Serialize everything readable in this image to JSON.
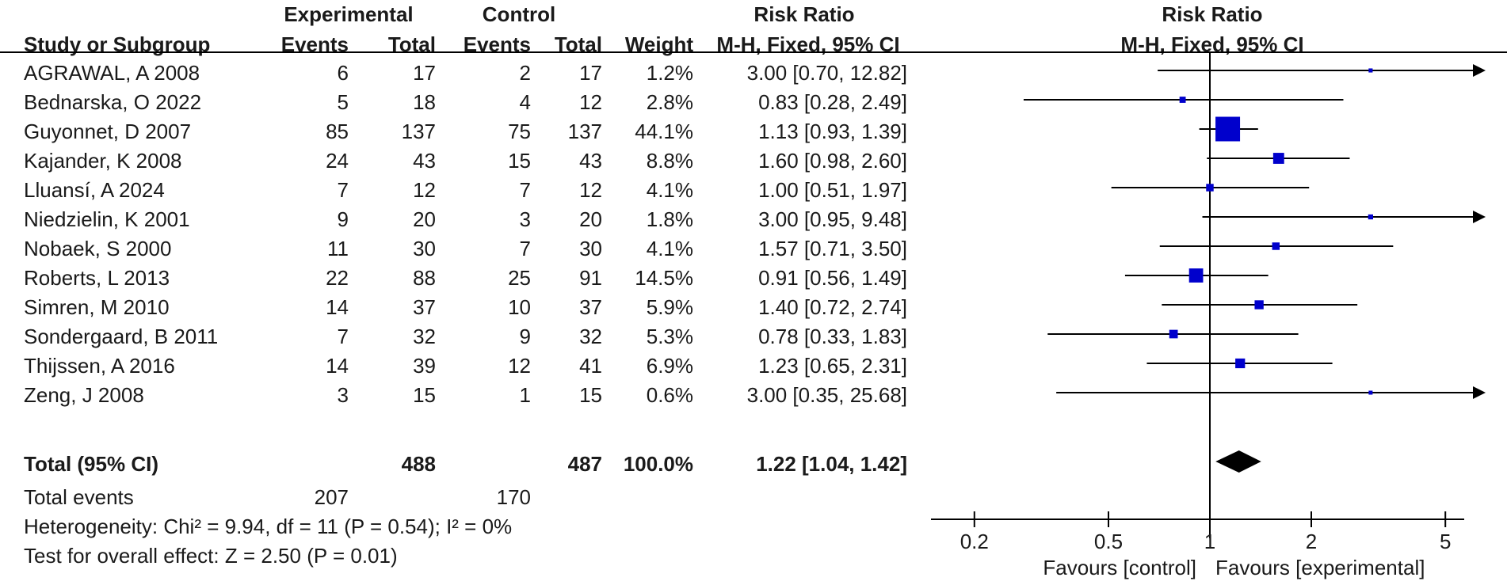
{
  "chart_data": {
    "type": "forest",
    "header": {
      "group_experimental": "Experimental",
      "group_control": "Control",
      "study_col": "Study or Subgroup",
      "events": "Events",
      "total": "Total",
      "weight": "Weight",
      "rr_title": "Risk Ratio",
      "rr_method": "M-H, Fixed, 95% CI",
      "plot_title": "Risk Ratio",
      "plot_method": "M-H, Fixed, 95% CI"
    },
    "studies": [
      {
        "name": "AGRAWAL, A 2008",
        "e_events": "6",
        "e_total": "17",
        "c_events": "2",
        "c_total": "17",
        "weight": "1.2%",
        "ci_text": "3.00 [0.70, 12.82]",
        "rr": 3.0,
        "lo": 0.7,
        "hi": 12.82,
        "w": 1.2
      },
      {
        "name": "Bednarska, O 2022",
        "e_events": "5",
        "e_total": "18",
        "c_events": "4",
        "c_total": "12",
        "weight": "2.8%",
        "ci_text": "0.83 [0.28, 2.49]",
        "rr": 0.83,
        "lo": 0.28,
        "hi": 2.49,
        "w": 2.8
      },
      {
        "name": "Guyonnet, D 2007",
        "e_events": "85",
        "e_total": "137",
        "c_events": "75",
        "c_total": "137",
        "weight": "44.1%",
        "ci_text": "1.13 [0.93, 1.39]",
        "rr": 1.13,
        "lo": 0.93,
        "hi": 1.39,
        "w": 44.1
      },
      {
        "name": "Kajander, K 2008",
        "e_events": "24",
        "e_total": "43",
        "c_events": "15",
        "c_total": "43",
        "weight": "8.8%",
        "ci_text": "1.60 [0.98, 2.60]",
        "rr": 1.6,
        "lo": 0.98,
        "hi": 2.6,
        "w": 8.8
      },
      {
        "name": "Lluansí, A 2024",
        "e_events": "7",
        "e_total": "12",
        "c_events": "7",
        "c_total": "12",
        "weight": "4.1%",
        "ci_text": "1.00 [0.51, 1.97]",
        "rr": 1.0,
        "lo": 0.51,
        "hi": 1.97,
        "w": 4.1
      },
      {
        "name": "Niedzielin, K 2001",
        "e_events": "9",
        "e_total": "20",
        "c_events": "3",
        "c_total": "20",
        "weight": "1.8%",
        "ci_text": "3.00 [0.95, 9.48]",
        "rr": 3.0,
        "lo": 0.95,
        "hi": 9.48,
        "w": 1.8
      },
      {
        "name": "Nobaek, S 2000",
        "e_events": "11",
        "e_total": "30",
        "c_events": "7",
        "c_total": "30",
        "weight": "4.1%",
        "ci_text": "1.57 [0.71, 3.50]",
        "rr": 1.57,
        "lo": 0.71,
        "hi": 3.5,
        "w": 4.1
      },
      {
        "name": "Roberts, L 2013",
        "e_events": "22",
        "e_total": "88",
        "c_events": "25",
        "c_total": "91",
        "weight": "14.5%",
        "ci_text": "0.91 [0.56, 1.49]",
        "rr": 0.91,
        "lo": 0.56,
        "hi": 1.49,
        "w": 14.5
      },
      {
        "name": "Simren, M 2010",
        "e_events": "14",
        "e_total": "37",
        "c_events": "10",
        "c_total": "37",
        "weight": "5.9%",
        "ci_text": "1.40 [0.72, 2.74]",
        "rr": 1.4,
        "lo": 0.72,
        "hi": 2.74,
        "w": 5.9
      },
      {
        "name": "Sondergaard, B 2011",
        "e_events": "7",
        "e_total": "32",
        "c_events": "9",
        "c_total": "32",
        "weight": "5.3%",
        "ci_text": "0.78 [0.33, 1.83]",
        "rr": 0.78,
        "lo": 0.33,
        "hi": 1.83,
        "w": 5.3
      },
      {
        "name": "Thijssen, A 2016",
        "e_events": "14",
        "e_total": "39",
        "c_events": "12",
        "c_total": "41",
        "weight": "6.9%",
        "ci_text": "1.23 [0.65, 2.31]",
        "rr": 1.23,
        "lo": 0.65,
        "hi": 2.31,
        "w": 6.9
      },
      {
        "name": "Zeng, J 2008",
        "e_events": "3",
        "e_total": "15",
        "c_events": "1",
        "c_total": "15",
        "weight": "0.6%",
        "ci_text": "3.00 [0.35, 25.68]",
        "rr": 3.0,
        "lo": 0.35,
        "hi": 25.68,
        "w": 0.6
      }
    ],
    "total": {
      "label": "Total (95% CI)",
      "e_total": "488",
      "c_total": "487",
      "weight": "100.0%",
      "ci_text": "1.22 [1.04, 1.42]",
      "rr": 1.22,
      "lo": 1.04,
      "hi": 1.42
    },
    "total_events": {
      "label": "Total events",
      "experimental": "207",
      "control": "170"
    },
    "heterogeneity": "Heterogeneity: Chi² = 9.94, df = 11 (P = 0.54); I² = 0%",
    "overall_effect": "Test for overall effect: Z = 2.50 (P = 0.01)",
    "axis": {
      "scale": "log",
      "xlim": [
        0.15,
        6.5
      ],
      "ticks": [
        0.2,
        0.5,
        1,
        2,
        5
      ],
      "tick_labels": [
        "0.2",
        "0.5",
        "1",
        "2",
        "5"
      ],
      "null_value": 1
    },
    "favours_left": "Favours [control]",
    "favours_right": "Favours [experimental]",
    "colors": {
      "marker": "#0000cc",
      "line": "#000000",
      "diamond": "#000000"
    }
  }
}
